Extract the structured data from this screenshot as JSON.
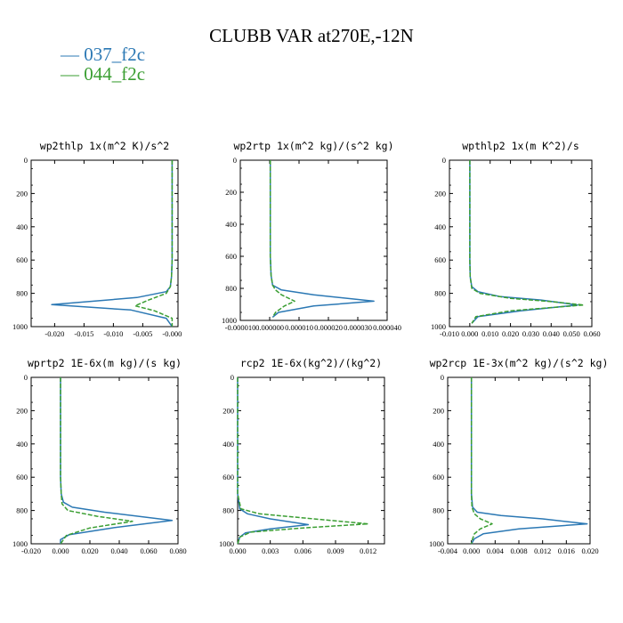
{
  "title": "CLUBB VAR at270E,-12N",
  "legend": [
    {
      "name": "037_f2c",
      "color": "#2b78b4",
      "dash": "solid"
    },
    {
      "name": "044_f2c",
      "color": "#3a9e32",
      "dash": "dashed"
    }
  ],
  "chart_data": [
    {
      "type": "line",
      "title": "wp2thlp  1x(m^2 K)/s^2",
      "xlim": [
        -0.024,
        0.001
      ],
      "xticks": [
        -0.02,
        -0.015,
        -0.01,
        -0.005,
        0.0
      ],
      "xticklabels": [
        "-0.020",
        "-0.015",
        "-0.010",
        "-0.005",
        "-0.000"
      ],
      "ylim": [
        1000,
        0
      ],
      "yticks": [
        0,
        200,
        400,
        600,
        800,
        1000
      ],
      "yticklabels": [
        "0",
        "200",
        "400",
        "600",
        "800",
        "1000"
      ],
      "series": [
        {
          "name": "037_f2c",
          "x": [
            0,
            0,
            0,
            -0.0001,
            -0.0003,
            -0.001,
            -0.006,
            -0.0205,
            -0.007,
            -0.001,
            0
          ],
          "y": [
            0,
            300,
            600,
            700,
            760,
            790,
            825,
            868,
            900,
            950,
            1000
          ]
        },
        {
          "name": "044_f2c",
          "x": [
            0,
            0,
            0,
            -0.0001,
            -0.0003,
            -0.001,
            -0.004,
            -0.0063,
            -0.003,
            0,
            0
          ],
          "y": [
            0,
            300,
            600,
            700,
            760,
            800,
            840,
            875,
            905,
            950,
            1000
          ]
        }
      ]
    },
    {
      "type": "line",
      "title": "wp2rtp  1x(m^2 kg)/(s^2 kg)",
      "xlim": [
        -1e-05,
        4e-05
      ],
      "xticks": [
        -1e-05,
        0.0,
        1e-05,
        2e-05,
        3e-05,
        4e-05
      ],
      "xticklabels": [
        "-0.000010",
        "0.000000",
        "0.000010",
        "0.000020",
        "0.000030",
        "0.000040"
      ],
      "ylim": [
        1000,
        0
      ],
      "yticks": [
        0,
        200,
        400,
        600,
        800,
        1000
      ],
      "yticklabels": [
        "0",
        "200",
        "400",
        "600",
        "800",
        "1000"
      ],
      "series": [
        {
          "name": "037_f2c",
          "x": [
            2e-07,
            2e-07,
            2e-07,
            5e-07,
            1e-06,
            4e-06,
            1.5e-05,
            3.55e-05,
            1.5e-05,
            3e-06,
            1e-06
          ],
          "y": [
            0,
            300,
            600,
            720,
            780,
            810,
            840,
            880,
            910,
            950,
            980
          ]
        },
        {
          "name": "044_f2c",
          "x": [
            2e-07,
            2e-07,
            2e-07,
            5e-07,
            1e-06,
            2e-06,
            4e-06,
            8.5e-06,
            5e-06,
            2e-06,
            1e-06
          ],
          "y": [
            0,
            300,
            600,
            720,
            780,
            810,
            840,
            880,
            910,
            950,
            980
          ]
        }
      ]
    },
    {
      "type": "line",
      "title": "wpthlp2  1x(m K^2)/s",
      "xlim": [
        -0.01,
        0.06
      ],
      "xticks": [
        -0.01,
        0.0,
        0.01,
        0.02,
        0.03,
        0.04,
        0.05,
        0.06
      ],
      "xticklabels": [
        "-0.010",
        "0.000",
        "0.010",
        "0.020",
        "0.030",
        "0.040",
        "0.050",
        "0.060"
      ],
      "ylim": [
        1000,
        0
      ],
      "yticks": [
        0,
        200,
        400,
        600,
        800,
        1000
      ],
      "yticklabels": [
        "0",
        "200",
        "400",
        "600",
        "800",
        "1000"
      ],
      "series": [
        {
          "name": "037_f2c",
          "x": [
            0,
            0,
            0,
            0.0002,
            0.001,
            0.004,
            0.015,
            0.035,
            0.053,
            0.025,
            0.004,
            0.001
          ],
          "y": [
            0,
            300,
            600,
            700,
            760,
            790,
            820,
            840,
            870,
            905,
            940,
            980
          ]
        },
        {
          "name": "044_f2c",
          "x": [
            0,
            0,
            0,
            0.0002,
            0.001,
            0.005,
            0.02,
            0.04,
            0.056,
            0.02,
            0.003,
            0.001
          ],
          "y": [
            0,
            300,
            600,
            700,
            770,
            800,
            830,
            850,
            870,
            905,
            940,
            980
          ]
        }
      ]
    },
    {
      "type": "line",
      "title": "wprtp2  1E-6x(m kg)/(s kg)",
      "xlim": [
        -0.02,
        0.08
      ],
      "xticks": [
        -0.02,
        0.0,
        0.02,
        0.04,
        0.06,
        0.08
      ],
      "xticklabels": [
        "-0.020",
        "0.000",
        "0.020",
        "0.040",
        "0.060",
        "0.080"
      ],
      "ylim": [
        1000,
        0
      ],
      "yticks": [
        0,
        200,
        400,
        600,
        800,
        1000
      ],
      "yticklabels": [
        "0",
        "200",
        "400",
        "600",
        "800",
        "1000"
      ],
      "series": [
        {
          "name": "037_f2c",
          "x": [
            0,
            0,
            0,
            0.0005,
            0.002,
            0.008,
            0.03,
            0.076,
            0.035,
            0.006,
            0,
            0
          ],
          "y": [
            0,
            300,
            600,
            700,
            750,
            780,
            810,
            860,
            905,
            945,
            975,
            1000
          ]
        },
        {
          "name": "044_f2c",
          "x": [
            0,
            0,
            0,
            0.0005,
            0.001,
            0.005,
            0.025,
            0.049,
            0.02,
            0.004,
            0
          ],
          "y": [
            0,
            300,
            600,
            700,
            760,
            800,
            835,
            865,
            905,
            950,
            1000
          ]
        }
      ]
    },
    {
      "type": "line",
      "title": "rcp2  1E-6x(kg^2)/(kg^2)",
      "xlim": [
        0,
        0.0135
      ],
      "xticks": [
        0.0,
        0.003,
        0.006,
        0.009,
        0.012
      ],
      "xticklabels": [
        "0.000",
        "0.003",
        "0.006",
        "0.009",
        "0.012"
      ],
      "ylim": [
        1000,
        0
      ],
      "yticks": [
        0,
        200,
        400,
        600,
        800,
        1000
      ],
      "yticklabels": [
        "0",
        "200",
        "400",
        "600",
        "800",
        "1000"
      ],
      "series": [
        {
          "name": "037_f2c",
          "x": [
            0,
            0,
            0,
            0.0002,
            0.0009,
            0.003,
            0.0065,
            0.003,
            0.0007,
            0.0002,
            0
          ],
          "y": [
            0,
            300,
            700,
            790,
            820,
            850,
            885,
            910,
            935,
            960,
            1000
          ]
        },
        {
          "name": "044_f2c",
          "x": [
            0,
            0,
            0,
            0.0003,
            0.002,
            0.007,
            0.012,
            0.006,
            0.0012,
            0.0002,
            0
          ],
          "y": [
            0,
            300,
            700,
            790,
            820,
            850,
            880,
            905,
            930,
            960,
            1000
          ]
        }
      ]
    },
    {
      "type": "line",
      "title": "wp2rcp  1E-3x(m^2 kg)/(s^2 kg)",
      "xlim": [
        -0.004,
        0.02
      ],
      "xticks": [
        -0.004,
        0.0,
        0.004,
        0.008,
        0.012,
        0.016,
        0.02
      ],
      "xticklabels": [
        "-0.004",
        "0.000",
        "0.004",
        "0.008",
        "0.012",
        "0.016",
        "0.020"
      ],
      "ylim": [
        1000,
        0
      ],
      "yticks": [
        0,
        200,
        400,
        600,
        800,
        1000
      ],
      "yticklabels": [
        "0",
        "200",
        "400",
        "600",
        "800",
        "1000"
      ],
      "series": [
        {
          "name": "037_f2c",
          "x": [
            0,
            0,
            0,
            0.0002,
            0.001,
            0.005,
            0.012,
            0.0195,
            0.008,
            0.002,
            0.0005,
            0
          ],
          "y": [
            0,
            300,
            700,
            780,
            810,
            830,
            850,
            880,
            910,
            940,
            970,
            1000
          ]
        },
        {
          "name": "044_f2c",
          "x": [
            0,
            0,
            0,
            0.0001,
            0.0005,
            0.0015,
            0.0035,
            0.0015,
            0.0005,
            0.0002,
            0
          ],
          "y": [
            0,
            300,
            700,
            780,
            820,
            850,
            880,
            910,
            940,
            970,
            1000
          ]
        }
      ]
    }
  ]
}
